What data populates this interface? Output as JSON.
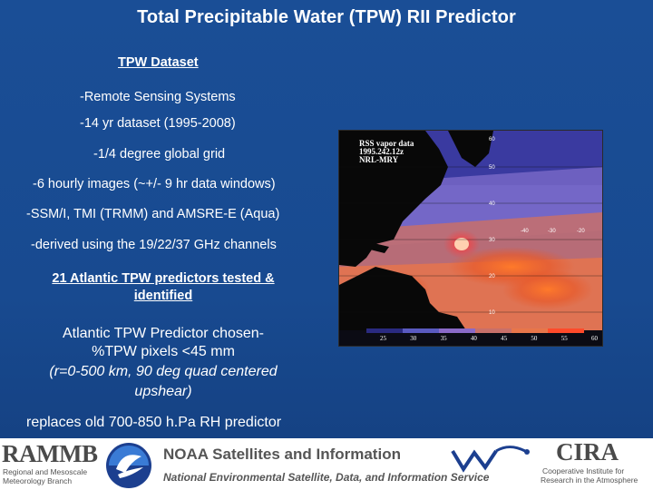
{
  "title": "Total Precipitable Water (TPW) RII Predictor",
  "dataset": {
    "heading": "TPW Dataset",
    "lines": [
      "-Remote Sensing Systems",
      "-14 yr dataset (1995-2008)",
      "-1/4 degree global grid",
      "-6 hourly images (~+/- 9 hr data windows)",
      "-SSM/I, TMI (TRMM) and AMSRE-E (Aqua)",
      "-derived using the 19/22/37 GHz channels"
    ]
  },
  "predictors": {
    "tested_line1": "21 Atlantic TPW predictors tested &",
    "tested_line2": "identified",
    "chosen_line1": "Atlantic TPW Predictor chosen-",
    "chosen_line2": "%TPW pixels <45 mm",
    "chosen_line3": "(r=0-500 km, 90 deg quad centered",
    "chosen_line4": "upshear)",
    "replaces": "replaces old 700-850 h.Pa RH predictor"
  },
  "map": {
    "label_line1": "RSS vapor data",
    "label_line2": "1995.242.12z",
    "label_line3": "NRL-MRY",
    "lat_labels": [
      "60",
      "50",
      "40",
      "30",
      "20",
      "10"
    ],
    "lon_labels": [
      "-40",
      "-30",
      "-20"
    ],
    "colorbar_ticks": [
      "25",
      "30",
      "35",
      "40",
      "45",
      "50",
      "55",
      "60"
    ]
  },
  "footer": {
    "rammb_logo": "RAMMB",
    "rammb_sub1": "Regional and Mesoscale",
    "rammb_sub2": "Meteorology Branch",
    "noaa_line1": "NOAA Satellites and Information",
    "noaa_line2": "National Environmental Satellite, Data, and Information Service",
    "cira_logo": "CIRA",
    "cira_sub1": "Cooperative Institute for",
    "cira_sub2": "Research in the Atmosphere"
  },
  "colors": {
    "background": "#184a90",
    "text": "#ffffff"
  }
}
